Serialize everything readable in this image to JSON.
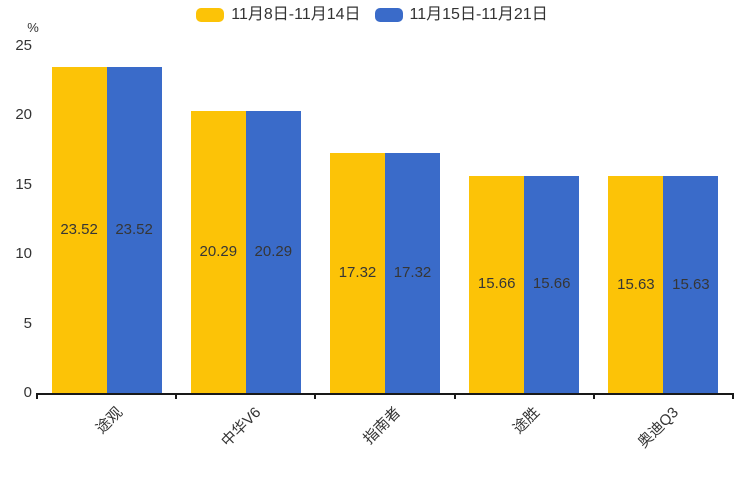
{
  "chart_data": {
    "type": "bar",
    "title": "",
    "unit_label": "%",
    "categories": [
      "途观",
      "中华V6",
      "指南者",
      "途胜",
      "奥迪Q3"
    ],
    "series": [
      {
        "name": "11月8日-11月14日",
        "color": "#FCC307",
        "values": [
          23.52,
          20.29,
          17.32,
          15.66,
          15.63
        ]
      },
      {
        "name": "11月15日-11月21日",
        "color": "#3A6BC9",
        "values": [
          23.52,
          20.29,
          17.32,
          15.66,
          15.63
        ]
      }
    ],
    "value_labels": [
      "23.52",
      "20.29",
      "17.32",
      "15.66",
      "15.63"
    ],
    "ylim": [
      0,
      25
    ],
    "yticks": [
      0,
      5,
      10,
      15,
      20,
      25
    ],
    "grid": false,
    "legend_position": "top-center",
    "value_label_position": "inside-center",
    "value_label_color": "#363636",
    "axis_color": "#191919",
    "text_color": "#333333",
    "background_color": "#ffffff"
  }
}
